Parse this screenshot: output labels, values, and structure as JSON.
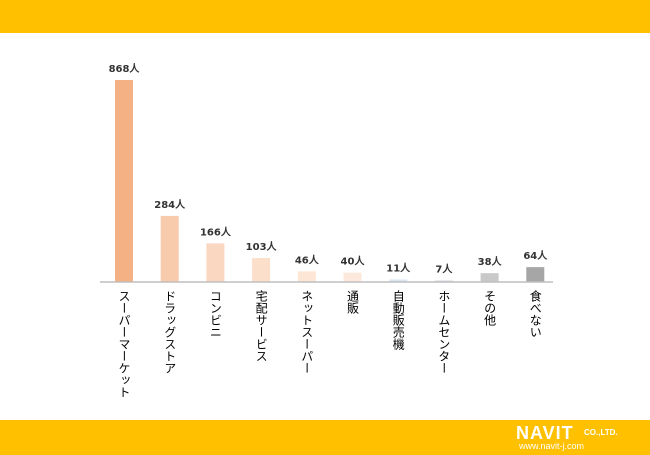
{
  "chart_data": {
    "type": "bar",
    "categories": [
      "スーパーマーケット",
      "ドラッグストア",
      "コンビニ",
      "宅配サービス",
      "ネットスーパー",
      "通販",
      "自動販売機",
      "ホームセンター",
      "その他",
      "食べない"
    ],
    "values": [
      868,
      284,
      166,
      103,
      46,
      40,
      11,
      7,
      38,
      64
    ],
    "value_labels": [
      "868人",
      "284人",
      "166人",
      "103人",
      "46人",
      "40人",
      "11人",
      "7人",
      "38人",
      "64人"
    ],
    "bar_colors": [
      "#f4b183",
      "#f8cbad",
      "#fad7c0",
      "#fbdfcb",
      "#fde6d6",
      "#fde9db",
      "#dbe6f1",
      "#d9dde3",
      "#c9c9c9",
      "#a6a6a6"
    ],
    "title": "",
    "xlabel": "",
    "ylabel": "",
    "ylim": [
      0,
      868
    ],
    "grid": false,
    "legend": "none"
  },
  "brand": {
    "name": "NAVIT",
    "suffix": "CO.,LTD.",
    "url": "www.navit-j.com"
  },
  "colors": {
    "band": "#ffc000",
    "axis": "#bfbfbf"
  }
}
